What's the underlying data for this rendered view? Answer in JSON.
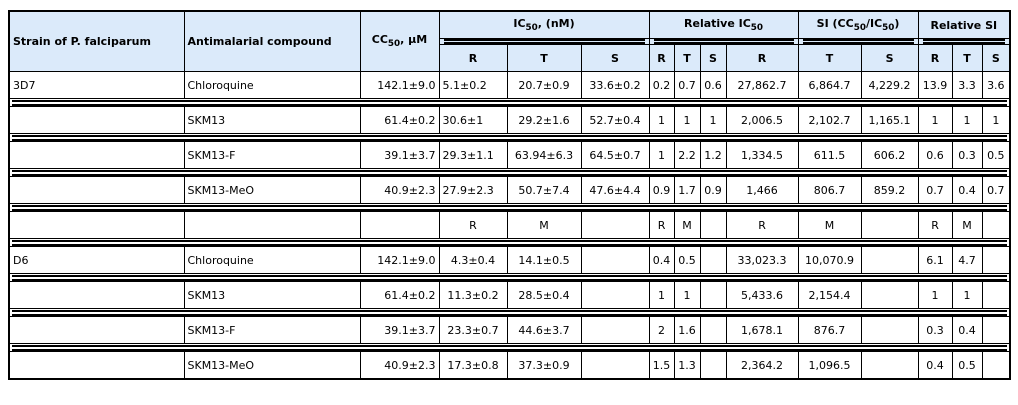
{
  "header": {
    "strain": "Strain of P. falciparum",
    "compound": "Antimalarial compound",
    "cc50": [
      "CC",
      "50",
      ", µM"
    ],
    "ic50": [
      "IC",
      "50",
      ", (nM)"
    ],
    "relative_ic50": [
      "Relative IC",
      "50",
      ""
    ],
    "si": [
      "SI (CC",
      "50",
      "/IC",
      "50",
      ")"
    ],
    "relative_si": "Relative SI",
    "sub_columns": [
      "R",
      "T",
      "S",
      "R",
      "T",
      "S",
      "R",
      "T",
      "S",
      "R",
      "T",
      "S"
    ]
  },
  "colors": {
    "header_bg": "#dbeafa",
    "border": "#000000"
  },
  "rows": [
    [
      "3D7",
      "Chloroquine",
      "142.1±9.0",
      "5.1±0.2",
      "20.7±0.9",
      "33.6±0.2",
      "0.2",
      "0.7",
      "0.6",
      "27,862.7",
      "6,864.7",
      "4,229.2",
      "13.9",
      "3.3",
      "3.6"
    ],
    [
      "",
      "SKM13",
      "61.4±0.2",
      "30.6±1",
      "29.2±1.6",
      "52.7±0.4",
      "1",
      "1",
      "1",
      "2,006.5",
      "2,102.7",
      "1,165.1",
      "1",
      "1",
      "1"
    ],
    [
      "",
      "SKM13-F",
      "39.1±3.7",
      "29.3±1.1",
      "63.94±6.3",
      "64.5±0.7",
      "1",
      "2.2",
      "1.2",
      "1,334.5",
      "611.5",
      "606.2",
      "0.6",
      "0.3",
      "0.5"
    ],
    [
      "",
      "SKM13-MeO",
      "40.9±2.3",
      "27.9±2.3",
      "50.7±7.4",
      "47.6±4.4",
      "0.9",
      "1.7",
      "0.9",
      "1,466",
      "806.7",
      "859.2",
      "0.7",
      "0.4",
      "0.7"
    ],
    [
      "",
      "",
      "",
      "R",
      "M",
      "",
      "R",
      "M",
      "",
      "R",
      "M",
      "",
      "R",
      "M",
      ""
    ],
    [
      "D6",
      "Chloroquine",
      "142.1±9.0",
      "4.3±0.4",
      "14.1±0.5",
      "",
      "0.4",
      "0.5",
      "",
      "33,023.3",
      "10,070.9",
      "",
      "6.1",
      "4.7",
      ""
    ],
    [
      "",
      "SKM13",
      "61.4±0.2",
      "11.3±0.2",
      "28.5±0.4",
      "",
      "1",
      "1",
      "",
      "5,433.6",
      "2,154.4",
      "",
      "1",
      "1",
      ""
    ],
    [
      "",
      "SKM13-F",
      "39.1±3.7",
      "23.3±0.7",
      "44.6±3.7",
      "",
      "2",
      "1.6",
      "",
      "1,678.1",
      "876.7",
      "",
      "0.3",
      "0.4",
      ""
    ],
    [
      "",
      "SKM13-MeO",
      "40.9±2.3",
      "17.3±0.8",
      "37.3±0.9",
      "",
      "1.5",
      "1.3",
      "",
      "2,364.2",
      "1,096.5",
      "",
      "0.4",
      "0.5",
      ""
    ]
  ]
}
